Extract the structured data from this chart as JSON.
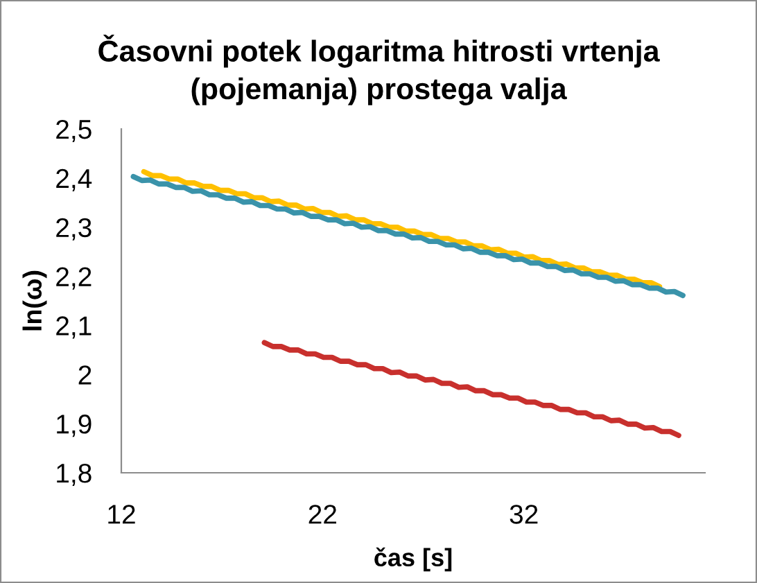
{
  "chart_data": {
    "type": "line",
    "title": "Časovni potek logaritma hitrosti vrtenja\n(pojemanja) prostega valja",
    "xlabel": "čas [s]",
    "ylabel": "ln(ω)",
    "xlim": [
      12,
      41
    ],
    "xticks": [
      12,
      22,
      32
    ],
    "ylim": [
      1.8,
      2.5
    ],
    "yticks": [
      {
        "value": 1.8,
        "label": "1,8"
      },
      {
        "value": 1.9,
        "label": "1,9"
      },
      {
        "value": 2.0,
        "label": "2"
      },
      {
        "value": 2.1,
        "label": "2,1"
      },
      {
        "value": 2.2,
        "label": "2,2"
      },
      {
        "value": 2.3,
        "label": "2,3"
      },
      {
        "value": 2.4,
        "label": "2,4"
      },
      {
        "value": 2.5,
        "label": "2,5"
      }
    ],
    "series": [
      {
        "color": "#ffc000",
        "x": [
          13.12,
          13.54,
          13.96,
          14.38,
          14.8,
          15.22,
          15.64,
          16.06,
          16.48,
          16.9,
          17.32,
          17.74,
          18.16,
          18.58,
          19.0,
          19.42,
          19.84,
          20.26,
          20.68,
          21.1,
          21.52,
          21.94,
          22.36,
          22.78,
          23.2,
          23.62,
          24.04,
          24.46,
          24.88,
          25.3,
          25.72,
          26.14,
          26.56,
          26.98,
          27.4,
          27.82,
          28.24,
          28.66,
          29.08,
          29.5,
          29.92,
          30.34,
          30.76,
          31.18,
          31.6,
          32.02,
          32.44,
          32.86,
          33.28,
          33.7,
          34.12,
          34.54,
          34.96,
          35.38,
          35.8,
          36.22,
          36.64,
          37.06,
          37.48,
          37.9,
          38.32,
          38.74
        ],
        "values": [
          2.413,
          2.405,
          2.405,
          2.398,
          2.398,
          2.39,
          2.39,
          2.383,
          2.383,
          2.375,
          2.375,
          2.368,
          2.368,
          2.36,
          2.36,
          2.352,
          2.353,
          2.345,
          2.345,
          2.337,
          2.338,
          2.33,
          2.33,
          2.322,
          2.323,
          2.315,
          2.315,
          2.307,
          2.307,
          2.3,
          2.3,
          2.292,
          2.292,
          2.285,
          2.285,
          2.277,
          2.277,
          2.27,
          2.27,
          2.262,
          2.262,
          2.254,
          2.255,
          2.247,
          2.247,
          2.239,
          2.24,
          2.232,
          2.232,
          2.224,
          2.225,
          2.217,
          2.217,
          2.209,
          2.209,
          2.202,
          2.202,
          2.194,
          2.194,
          2.187,
          2.187,
          2.179
        ]
      },
      {
        "color": "#3a93aa",
        "x": [
          12.6,
          13.02,
          13.44,
          13.86,
          14.28,
          14.7,
          15.12,
          15.54,
          15.96,
          16.38,
          16.8,
          17.22,
          17.64,
          18.06,
          18.48,
          18.9,
          19.32,
          19.74,
          20.16,
          20.58,
          21.0,
          21.42,
          21.84,
          22.26,
          22.68,
          23.1,
          23.52,
          23.94,
          24.36,
          24.78,
          25.2,
          25.62,
          26.04,
          26.46,
          26.88,
          27.3,
          27.72,
          28.14,
          28.56,
          28.98,
          29.4,
          29.82,
          30.24,
          30.66,
          31.08,
          31.5,
          31.92,
          32.34,
          32.76,
          33.18,
          33.6,
          34.02,
          34.44,
          34.86,
          35.28,
          35.7,
          36.12,
          36.54,
          36.96,
          37.38,
          37.8,
          38.22,
          38.64,
          39.06,
          39.48,
          39.9
        ],
        "values": [
          2.403,
          2.395,
          2.396,
          2.388,
          2.388,
          2.381,
          2.381,
          2.373,
          2.374,
          2.366,
          2.366,
          2.359,
          2.359,
          2.351,
          2.352,
          2.344,
          2.344,
          2.337,
          2.337,
          2.329,
          2.33,
          2.322,
          2.322,
          2.315,
          2.315,
          2.307,
          2.308,
          2.3,
          2.301,
          2.293,
          2.293,
          2.286,
          2.286,
          2.278,
          2.279,
          2.271,
          2.271,
          2.264,
          2.264,
          2.256,
          2.257,
          2.249,
          2.249,
          2.242,
          2.242,
          2.234,
          2.235,
          2.227,
          2.227,
          2.22,
          2.22,
          2.212,
          2.213,
          2.205,
          2.205,
          2.198,
          2.198,
          2.19,
          2.191,
          2.183,
          2.183,
          2.176,
          2.176,
          2.168,
          2.169,
          2.161
        ]
      },
      {
        "color": "#c8302d",
        "x": [
          19.11,
          19.53,
          19.95,
          20.37,
          20.79,
          21.21,
          21.63,
          22.05,
          22.47,
          22.89,
          23.31,
          23.73,
          24.15,
          24.57,
          24.99,
          25.41,
          25.83,
          26.25,
          26.67,
          27.09,
          27.51,
          27.93,
          28.35,
          28.77,
          29.19,
          29.61,
          30.03,
          30.45,
          30.87,
          31.29,
          31.71,
          32.13,
          32.55,
          32.97,
          33.39,
          33.81,
          34.23,
          34.65,
          35.07,
          35.49,
          35.91,
          36.33,
          36.75,
          37.17,
          37.59,
          38.01,
          38.43,
          38.85,
          39.27,
          39.69
        ],
        "values": [
          2.065,
          2.057,
          2.057,
          2.05,
          2.05,
          2.042,
          2.042,
          2.035,
          2.035,
          2.027,
          2.027,
          2.02,
          2.02,
          2.012,
          2.012,
          2.004,
          2.005,
          1.997,
          1.997,
          1.989,
          1.99,
          1.982,
          1.982,
          1.974,
          1.975,
          1.967,
          1.967,
          1.959,
          1.959,
          1.952,
          1.952,
          1.944,
          1.944,
          1.937,
          1.937,
          1.929,
          1.929,
          1.922,
          1.922,
          1.914,
          1.914,
          1.906,
          1.907,
          1.899,
          1.899,
          1.891,
          1.892,
          1.884,
          1.884,
          1.876
        ]
      }
    ]
  }
}
